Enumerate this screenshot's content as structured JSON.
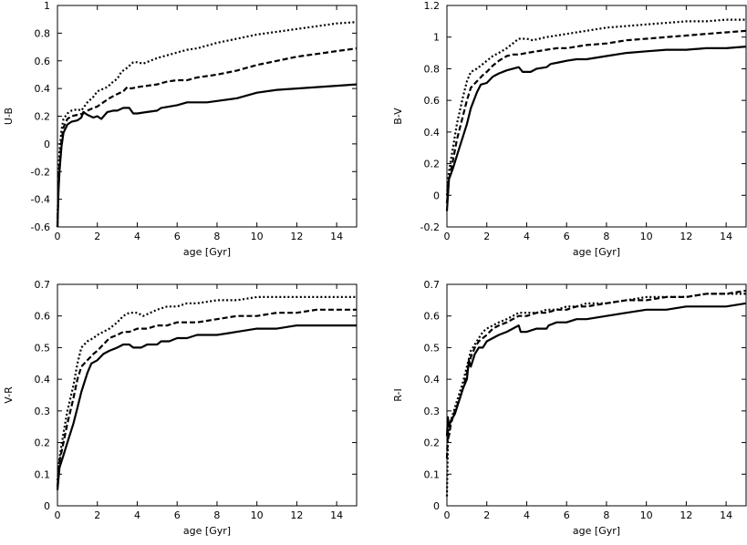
{
  "chart_data": [
    {
      "type": "line",
      "xlabel": "age [Gyr]",
      "ylabel": "U-B",
      "xlim": [
        0,
        15
      ],
      "ylim": [
        -0.6,
        1
      ],
      "xticks": [
        0,
        2,
        4,
        6,
        8,
        10,
        12,
        14
      ],
      "yticks": [
        -0.6,
        -0.4,
        -0.2,
        0,
        0.2,
        0.4,
        0.6,
        0.8,
        1
      ],
      "ytick_labels": [
        "-0.6",
        "-0.4",
        "-0.2",
        "0",
        "0.2",
        "0.4",
        "0.6",
        "0.8",
        "1"
      ],
      "grid": false,
      "series": [
        {
          "style": "solid",
          "x": [
            0,
            0.05,
            0.1,
            0.2,
            0.3,
            0.5,
            0.7,
            1.0,
            1.2,
            1.3,
            1.5,
            1.8,
            2.0,
            2.2,
            2.5,
            2.8,
            3.0,
            3.3,
            3.6,
            3.8,
            4.0,
            4.5,
            5.0,
            5.2,
            5.6,
            6.0,
            6.5,
            7.0,
            7.5,
            8.0,
            9.0,
            10.0,
            11.0,
            12.0,
            13.0,
            14.0,
            15.0
          ],
          "y": [
            -0.6,
            -0.35,
            -0.2,
            -0.02,
            0.08,
            0.14,
            0.16,
            0.17,
            0.19,
            0.23,
            0.21,
            0.19,
            0.2,
            0.18,
            0.23,
            0.24,
            0.24,
            0.26,
            0.26,
            0.22,
            0.22,
            0.23,
            0.24,
            0.26,
            0.27,
            0.28,
            0.3,
            0.3,
            0.3,
            0.31,
            0.33,
            0.37,
            0.39,
            0.4,
            0.41,
            0.42,
            0.43
          ]
        },
        {
          "style": "dashed",
          "x": [
            0,
            0.05,
            0.1,
            0.2,
            0.3,
            0.5,
            0.7,
            1.0,
            1.3,
            1.5,
            1.8,
            2.0,
            2.3,
            2.6,
            3.0,
            3.3,
            3.5,
            3.7,
            4.0,
            4.5,
            5.0,
            5.5,
            6.0,
            6.5,
            7.0,
            8.0,
            9.0,
            10.0,
            11.0,
            12.0,
            13.0,
            14.0,
            15.0
          ],
          "y": [
            -0.6,
            -0.3,
            -0.15,
            0.02,
            0.12,
            0.18,
            0.2,
            0.21,
            0.22,
            0.24,
            0.26,
            0.27,
            0.3,
            0.33,
            0.36,
            0.38,
            0.41,
            0.4,
            0.41,
            0.42,
            0.43,
            0.45,
            0.46,
            0.46,
            0.48,
            0.5,
            0.53,
            0.57,
            0.6,
            0.63,
            0.65,
            0.67,
            0.69
          ]
        },
        {
          "style": "dotted",
          "x": [
            0,
            0.05,
            0.1,
            0.2,
            0.3,
            0.5,
            0.7,
            1.0,
            1.2,
            1.5,
            1.8,
            2.0,
            2.5,
            2.8,
            3.0,
            3.2,
            3.5,
            3.8,
            4.0,
            4.3,
            5.0,
            5.5,
            6.0,
            6.5,
            7.0,
            8.0,
            9.0,
            10.0,
            11.0,
            12.0,
            13.0,
            14.0,
            15.0
          ],
          "y": [
            -0.6,
            -0.25,
            -0.05,
            0.1,
            0.18,
            0.22,
            0.24,
            0.25,
            0.24,
            0.3,
            0.34,
            0.38,
            0.41,
            0.45,
            0.47,
            0.52,
            0.55,
            0.59,
            0.59,
            0.58,
            0.62,
            0.64,
            0.66,
            0.68,
            0.69,
            0.73,
            0.76,
            0.79,
            0.81,
            0.83,
            0.85,
            0.87,
            0.88
          ]
        }
      ]
    },
    {
      "type": "line",
      "xlabel": "age [Gyr]",
      "ylabel": "B-V",
      "xlim": [
        0,
        15
      ],
      "ylim": [
        -0.2,
        1.2
      ],
      "xticks": [
        0,
        2,
        4,
        6,
        8,
        10,
        12,
        14
      ],
      "yticks": [
        -0.2,
        0,
        0.2,
        0.4,
        0.6,
        0.8,
        1,
        1.2
      ],
      "ytick_labels": [
        "-0.2",
        "0",
        "0.2",
        "0.4",
        "0.6",
        "0.8",
        "1",
        "1.2"
      ],
      "grid": false,
      "series": [
        {
          "style": "solid",
          "x": [
            0,
            0.1,
            0.3,
            0.5,
            0.8,
            1.0,
            1.2,
            1.5,
            1.7,
            2.0,
            2.3,
            2.6,
            3.0,
            3.3,
            3.6,
            3.8,
            4.2,
            4.5,
            5.0,
            5.2,
            5.6,
            6.0,
            6.5,
            7.0,
            8.0,
            9.0,
            10.0,
            11.0,
            12.0,
            13.0,
            14.0,
            15.0
          ],
          "y": [
            -0.1,
            0.1,
            0.17,
            0.25,
            0.37,
            0.45,
            0.55,
            0.65,
            0.7,
            0.71,
            0.75,
            0.77,
            0.79,
            0.8,
            0.81,
            0.78,
            0.78,
            0.8,
            0.81,
            0.83,
            0.84,
            0.85,
            0.86,
            0.86,
            0.88,
            0.9,
            0.91,
            0.92,
            0.92,
            0.93,
            0.93,
            0.94
          ]
        },
        {
          "style": "dashed",
          "x": [
            0,
            0.1,
            0.3,
            0.5,
            0.8,
            1.0,
            1.2,
            1.5,
            1.8,
            2.0,
            2.3,
            2.6,
            3.0,
            3.3,
            3.6,
            4.0,
            4.5,
            5.0,
            5.5,
            6.0,
            6.5,
            7.0,
            8.0,
            9.0,
            10.0,
            11.0,
            12.0,
            13.0,
            14.0,
            15.0
          ],
          "y": [
            -0.05,
            0.1,
            0.22,
            0.35,
            0.5,
            0.6,
            0.68,
            0.72,
            0.76,
            0.78,
            0.82,
            0.85,
            0.88,
            0.89,
            0.89,
            0.9,
            0.91,
            0.92,
            0.93,
            0.93,
            0.94,
            0.95,
            0.96,
            0.98,
            0.99,
            1.0,
            1.01,
            1.02,
            1.03,
            1.04
          ]
        },
        {
          "style": "dotted",
          "x": [
            0,
            0.1,
            0.3,
            0.5,
            0.8,
            1.0,
            1.2,
            1.5,
            1.8,
            2.0,
            2.3,
            2.6,
            3.0,
            3.3,
            3.6,
            4.0,
            4.3,
            5.0,
            5.5,
            6.0,
            6.5,
            7.0,
            8.0,
            9.0,
            10.0,
            11.0,
            12.0,
            13.0,
            14.0,
            15.0
          ],
          "y": [
            0.0,
            0.15,
            0.3,
            0.45,
            0.62,
            0.72,
            0.78,
            0.8,
            0.83,
            0.85,
            0.88,
            0.9,
            0.93,
            0.96,
            0.99,
            0.99,
            0.98,
            1.0,
            1.01,
            1.02,
            1.03,
            1.04,
            1.06,
            1.07,
            1.08,
            1.09,
            1.1,
            1.1,
            1.11,
            1.11
          ]
        }
      ]
    },
    {
      "type": "line",
      "xlabel": "age [Gyr]",
      "ylabel": "V-R",
      "xlim": [
        0,
        15
      ],
      "ylim": [
        0,
        0.7
      ],
      "xticks": [
        0,
        2,
        4,
        6,
        8,
        10,
        12,
        14
      ],
      "yticks": [
        0,
        0.1,
        0.2,
        0.3,
        0.4,
        0.5,
        0.6,
        0.7
      ],
      "ytick_labels": [
        "0",
        "0.1",
        "0.2",
        "0.3",
        "0.4",
        "0.5",
        "0.6",
        "0.7"
      ],
      "grid": false,
      "series": [
        {
          "style": "solid",
          "x": [
            0,
            0.1,
            0.3,
            0.5,
            0.8,
            1.0,
            1.2,
            1.5,
            1.7,
            2.0,
            2.3,
            2.6,
            3.0,
            3.3,
            3.6,
            3.8,
            4.2,
            4.5,
            5.0,
            5.2,
            5.6,
            6.0,
            6.5,
            7.0,
            8.0,
            9.0,
            10.0,
            11.0,
            12.0,
            13.0,
            14.0,
            15.0
          ],
          "y": [
            0.05,
            0.12,
            0.16,
            0.2,
            0.26,
            0.31,
            0.36,
            0.42,
            0.45,
            0.46,
            0.48,
            0.49,
            0.5,
            0.51,
            0.51,
            0.5,
            0.5,
            0.51,
            0.51,
            0.52,
            0.52,
            0.53,
            0.53,
            0.54,
            0.54,
            0.55,
            0.56,
            0.56,
            0.57,
            0.57,
            0.57,
            0.57
          ]
        },
        {
          "style": "dashed",
          "x": [
            0,
            0.1,
            0.3,
            0.5,
            0.8,
            1.0,
            1.2,
            1.5,
            1.8,
            2.0,
            2.3,
            2.6,
            3.0,
            3.3,
            3.6,
            4.0,
            4.5,
            5.0,
            5.5,
            6.0,
            6.5,
            7.0,
            8.0,
            9.0,
            10.0,
            11.0,
            12.0,
            13.0,
            14.0,
            15.0
          ],
          "y": [
            0.06,
            0.14,
            0.2,
            0.26,
            0.34,
            0.4,
            0.44,
            0.46,
            0.48,
            0.49,
            0.51,
            0.53,
            0.54,
            0.55,
            0.55,
            0.56,
            0.56,
            0.57,
            0.57,
            0.58,
            0.58,
            0.58,
            0.59,
            0.6,
            0.6,
            0.61,
            0.61,
            0.62,
            0.62,
            0.62
          ]
        },
        {
          "style": "dotted",
          "x": [
            0,
            0.1,
            0.3,
            0.5,
            0.8,
            1.0,
            1.2,
            1.5,
            1.8,
            2.0,
            2.3,
            2.6,
            3.0,
            3.3,
            3.6,
            4.0,
            4.3,
            5.0,
            5.5,
            6.0,
            6.5,
            7.0,
            8.0,
            9.0,
            10.0,
            11.0,
            12.0,
            13.0,
            14.0,
            15.0
          ],
          "y": [
            0.08,
            0.15,
            0.23,
            0.3,
            0.38,
            0.45,
            0.5,
            0.52,
            0.53,
            0.54,
            0.55,
            0.56,
            0.58,
            0.6,
            0.61,
            0.61,
            0.6,
            0.62,
            0.63,
            0.63,
            0.64,
            0.64,
            0.65,
            0.65,
            0.66,
            0.66,
            0.66,
            0.66,
            0.66,
            0.66
          ]
        }
      ]
    },
    {
      "type": "line",
      "xlabel": "age [Gyr]",
      "ylabel": "R-I",
      "xlim": [
        0,
        15
      ],
      "ylim": [
        0,
        0.7
      ],
      "xticks": [
        0,
        2,
        4,
        6,
        8,
        10,
        12,
        14
      ],
      "yticks": [
        0,
        0.1,
        0.2,
        0.3,
        0.4,
        0.5,
        0.6,
        0.7
      ],
      "ytick_labels": [
        "0",
        "0.1",
        "0.2",
        "0.3",
        "0.4",
        "0.5",
        "0.6",
        "0.7"
      ],
      "grid": false,
      "series": [
        {
          "style": "solid",
          "x": [
            0,
            0.05,
            0.1,
            0.2,
            0.4,
            0.6,
            0.8,
            1.0,
            1.1,
            1.2,
            1.4,
            1.6,
            1.8,
            2.0,
            2.3,
            2.6,
            3.0,
            3.3,
            3.6,
            3.7,
            4.0,
            4.5,
            5.0,
            5.1,
            5.5,
            6.0,
            6.5,
            7.0,
            8.0,
            9.0,
            10.0,
            11.0,
            12.0,
            13.0,
            14.0,
            15.0
          ],
          "y": [
            0.22,
            0.28,
            0.25,
            0.27,
            0.29,
            0.33,
            0.37,
            0.4,
            0.46,
            0.44,
            0.48,
            0.5,
            0.5,
            0.52,
            0.53,
            0.54,
            0.55,
            0.56,
            0.57,
            0.55,
            0.55,
            0.56,
            0.56,
            0.57,
            0.58,
            0.58,
            0.59,
            0.59,
            0.6,
            0.61,
            0.62,
            0.62,
            0.63,
            0.63,
            0.63,
            0.64
          ]
        },
        {
          "style": "dashed",
          "x": [
            0,
            0.05,
            0.1,
            0.2,
            0.4,
            0.6,
            0.8,
            1.0,
            1.2,
            1.4,
            1.6,
            1.8,
            2.0,
            2.3,
            2.6,
            3.0,
            3.3,
            3.6,
            4.0,
            4.5,
            5.0,
            5.5,
            6.0,
            6.5,
            7.0,
            8.0,
            9.0,
            10.0,
            11.0,
            12.0,
            13.0,
            14.0,
            15.0
          ],
          "y": [
            0.15,
            0.24,
            0.22,
            0.26,
            0.3,
            0.33,
            0.37,
            0.42,
            0.47,
            0.5,
            0.52,
            0.53,
            0.54,
            0.56,
            0.57,
            0.58,
            0.59,
            0.6,
            0.6,
            0.61,
            0.61,
            0.62,
            0.62,
            0.63,
            0.63,
            0.64,
            0.65,
            0.65,
            0.66,
            0.66,
            0.67,
            0.67,
            0.68
          ]
        },
        {
          "style": "dotted",
          "x": [
            0,
            0.05,
            0.1,
            0.2,
            0.4,
            0.6,
            0.8,
            1.0,
            1.2,
            1.4,
            1.6,
            1.8,
            2.0,
            2.3,
            2.6,
            3.0,
            3.3,
            3.6,
            4.0,
            4.5,
            5.0,
            5.5,
            6.0,
            6.5,
            7.0,
            8.0,
            9.0,
            10.0,
            11.0,
            12.0,
            13.0,
            14.0,
            15.0
          ],
          "y": [
            0.03,
            0.2,
            0.23,
            0.27,
            0.31,
            0.35,
            0.39,
            0.44,
            0.49,
            0.51,
            0.53,
            0.55,
            0.56,
            0.57,
            0.58,
            0.59,
            0.6,
            0.61,
            0.61,
            0.61,
            0.62,
            0.62,
            0.63,
            0.63,
            0.64,
            0.64,
            0.65,
            0.66,
            0.66,
            0.66,
            0.67,
            0.67,
            0.67
          ]
        }
      ]
    }
  ]
}
